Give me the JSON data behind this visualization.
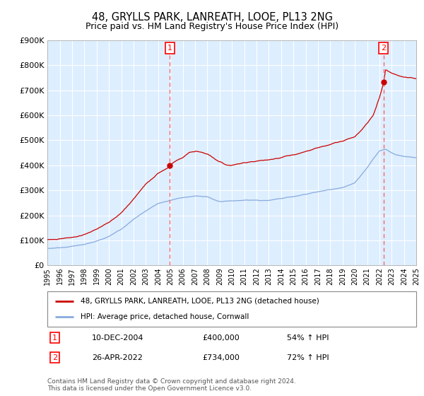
{
  "title": "48, GRYLLS PARK, LANREATH, LOOE, PL13 2NG",
  "subtitle": "Price paid vs. HM Land Registry's House Price Index (HPI)",
  "hpi_label": "HPI: Average price, detached house, Cornwall",
  "price_label": "48, GRYLLS PARK, LANREATH, LOOE, PL13 2NG (detached house)",
  "transaction1_date": "10-DEC-2004",
  "transaction1_price": 400000,
  "transaction1_pct": "54% ↑ HPI",
  "transaction2_date": "26-APR-2022",
  "transaction2_price": 734000,
  "transaction2_pct": "72% ↑ HPI",
  "footer": "Contains HM Land Registry data © Crown copyright and database right 2024.\nThis data is licensed under the Open Government Licence v3.0.",
  "price_color": "#cc0000",
  "hpi_color": "#88aadd",
  "background_color": "#ddeeff",
  "vline_color": "#ff6666",
  "dot_color": "#cc0000",
  "ylim": [
    0,
    900000
  ],
  "ylabel_ticks": [
    0,
    100000,
    200000,
    300000,
    400000,
    500000,
    600000,
    700000,
    800000,
    900000
  ],
  "x_start_year": 1995,
  "x_end_year": 2025,
  "transaction1_year": 2004.95,
  "transaction2_year": 2022.32
}
